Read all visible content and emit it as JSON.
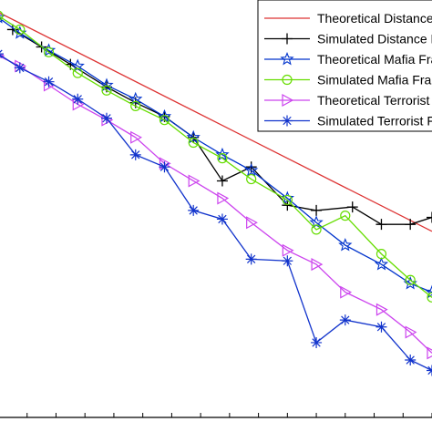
{
  "chart_data": {
    "type": "line",
    "title": "",
    "xlabel": "",
    "ylabel": "",
    "xlim": [
      0,
      30
    ],
    "ylim": [
      0,
      24
    ],
    "grid": false,
    "legend_placement": "top-right",
    "series": [
      {
        "name": "Theoretical Distance Bounding",
        "color": "#dd3333",
        "marker": "none",
        "x": [
          0,
          30
        ],
        "y": [
          23.3,
          10.7
        ]
      },
      {
        "name": "Simulated Distance Bounding",
        "color": "#000000",
        "marker": "plus",
        "x": [
          1,
          3,
          5,
          7.5,
          9.5,
          11.5,
          13.5,
          15.5,
          17.5,
          20,
          22,
          24.5,
          26.5,
          28.5,
          30
        ],
        "y": [
          22.3,
          21.3,
          20.3,
          19.0,
          18.1,
          17.3,
          16.1,
          13.6,
          14.4,
          12.2,
          11.9,
          12.1,
          11.1,
          11.1,
          11.5
        ]
      },
      {
        "name": "Theoretical Mafia Fraud",
        "color": "#0033cc",
        "marker": "star",
        "x": [
          0,
          1.5,
          3.5,
          5.5,
          7.5,
          9.5,
          11.5,
          13.5,
          15.5,
          17.5,
          20,
          22,
          24,
          26.5,
          28.5,
          30
        ],
        "y": [
          23.0,
          22.1,
          21.1,
          20.2,
          19.1,
          18.3,
          17.3,
          16.1,
          15.1,
          14.2,
          12.6,
          11.2,
          9.9,
          8.8,
          7.7,
          7.2
        ]
      },
      {
        "name": "Simulated Mafia Fraud",
        "color": "#66dd00",
        "marker": "circle",
        "x": [
          0,
          1.5,
          3.5,
          5.5,
          7.5,
          9.5,
          11.5,
          13.5,
          15.5,
          17.5,
          20,
          22,
          24,
          26.5,
          28.5,
          30
        ],
        "y": [
          23.1,
          22.3,
          21.0,
          19.8,
          18.8,
          17.9,
          17.1,
          15.8,
          14.9,
          13.7,
          12.5,
          10.8,
          11.6,
          9.4,
          7.9,
          6.9
        ]
      },
      {
        "name": "Theoretical Terrorist Fraud",
        "color": "#cc44ee",
        "marker": "triangle-right",
        "x": [
          0,
          1.5,
          3.5,
          5.5,
          7.5,
          9.5,
          11.5,
          13.5,
          15.5,
          17.5,
          20,
          22,
          24,
          26.5,
          28.5,
          30
        ],
        "y": [
          20.8,
          20.2,
          19.1,
          18.0,
          17.1,
          16.1,
          14.6,
          13.6,
          12.6,
          11.2,
          9.6,
          8.8,
          7.2,
          6.2,
          4.9,
          3.7
        ]
      },
      {
        "name": "Simulated Terrorist Fraud",
        "color": "#1133cc",
        "marker": "asterisk",
        "x": [
          0,
          1.5,
          3.5,
          5.5,
          7.5,
          9.5,
          11.5,
          13.5,
          15.5,
          17.5,
          20,
          22,
          24,
          26.5,
          28.5,
          30
        ],
        "y": [
          20.9,
          20.1,
          19.3,
          18.3,
          17.2,
          15.1,
          14.4,
          11.9,
          11.4,
          9.1,
          9.0,
          4.3,
          5.6,
          5.2,
          3.3,
          2.7
        ]
      }
    ]
  },
  "legend": {
    "entries": [
      "Theoretical Distance Bounding",
      "Simulated Distance Bounding",
      "Theoretical Mafia Fraud",
      "Simulated Mafia Fraud",
      "Theoretical Terrorist Fraud",
      "Simulated Terrorist Fraud"
    ]
  }
}
